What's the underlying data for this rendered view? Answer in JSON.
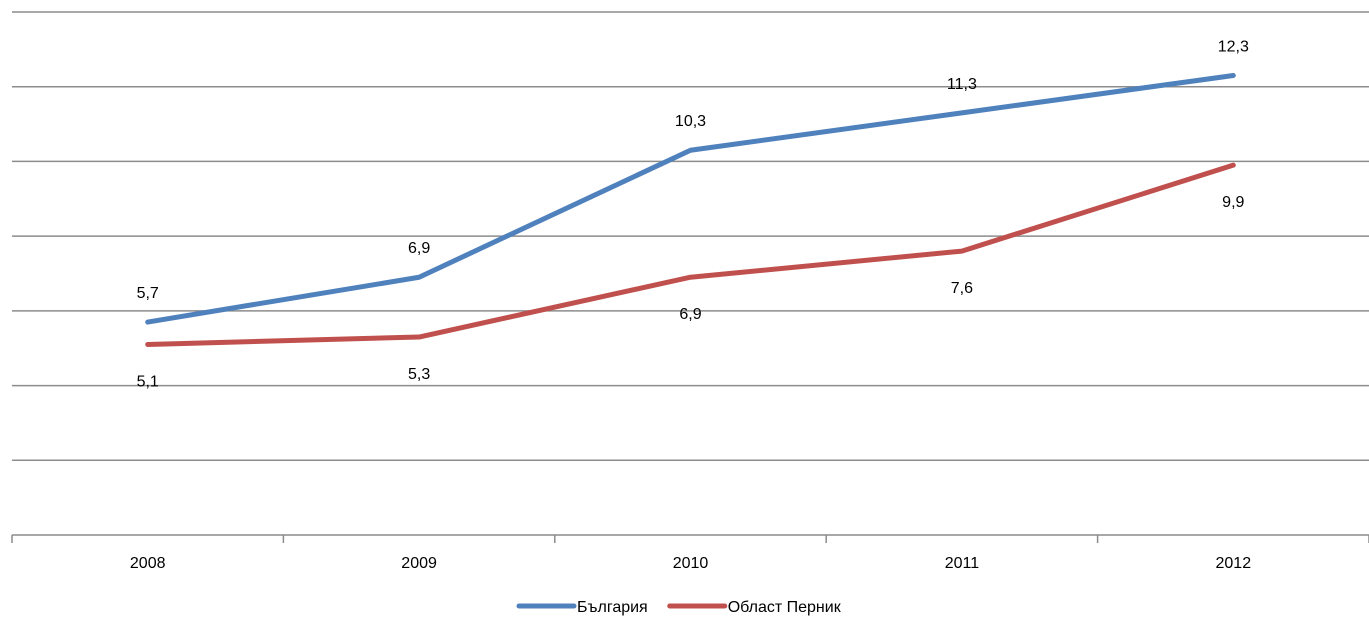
{
  "chart_data": {
    "type": "line",
    "categories": [
      "2008",
      "2009",
      "2010",
      "2011",
      "2012"
    ],
    "series": [
      {
        "name": "България",
        "color": "#4f81bd",
        "values": [
          5.7,
          6.9,
          10.3,
          11.3,
          12.3
        ],
        "labels": [
          "5,7",
          "6,9",
          "10,3",
          "11,3",
          "12,3"
        ],
        "label_position": "above"
      },
      {
        "name": "Област Перник",
        "color": "#c0504d",
        "values": [
          5.1,
          5.3,
          6.9,
          7.6,
          9.9
        ],
        "labels": [
          "5,1",
          "5,3",
          "6,9",
          "7,6",
          "9,9"
        ],
        "label_position": "below"
      }
    ],
    "ylim": [
      0,
      14
    ],
    "y_gridline_step": 2,
    "y_tick_labels_shown": false,
    "grid": true,
    "legend_position": "bottom"
  }
}
